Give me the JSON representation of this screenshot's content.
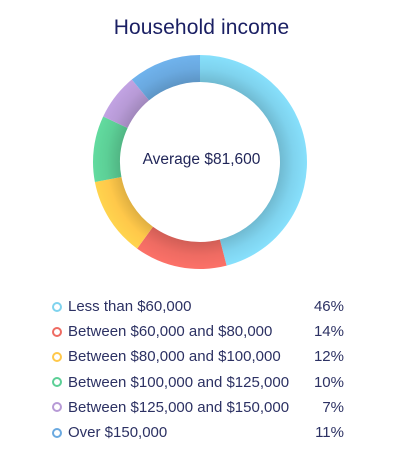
{
  "chart_data": {
    "type": "pie",
    "title": "Household income",
    "center_label": "Average $81,600",
    "categories": [
      "Less than $60,000",
      "Between $60,000 and $80,000",
      "Between $80,000 and $100,000",
      "Between $100,000 and $125,000",
      "Between $125,000 and $150,000",
      "Over $150,000"
    ],
    "values": [
      46,
      14,
      12,
      10,
      7,
      11
    ],
    "value_labels": [
      "46%",
      "14%",
      "12%",
      "10%",
      "7%",
      "11%"
    ],
    "colors": [
      "#7fd3ee",
      "#ee6b62",
      "#ffc84a",
      "#5ccf96",
      "#b79ad6",
      "#6aa9e0"
    ],
    "legend_position": "bottom",
    "donut": true
  }
}
